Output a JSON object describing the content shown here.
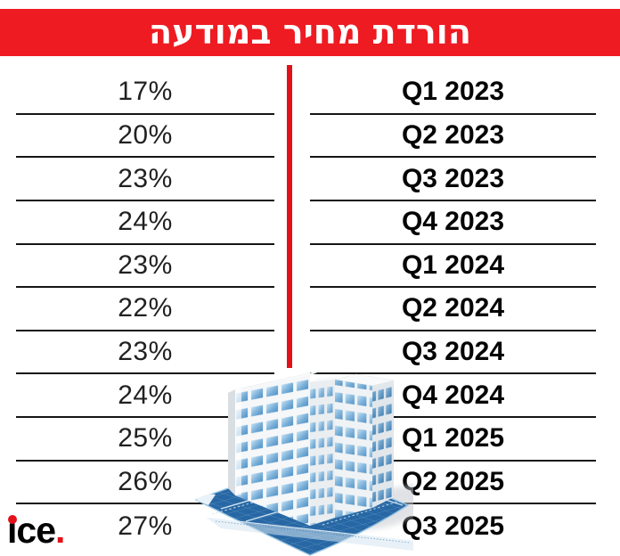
{
  "title": "הורדת מחיר במודעה",
  "logo": {
    "word": "ice",
    "period": "."
  },
  "colors": {
    "banner_red": "#EE1B22",
    "divider_red": "#E21117",
    "logo_accent_red": "#E3111B",
    "separator_line": "#151515",
    "blueprint_blue": "#2767A4",
    "window_blue": "#6FA8D4"
  },
  "table": {
    "rows": [
      {
        "percent": "17%",
        "quarter": "Q1 2023"
      },
      {
        "percent": "20%",
        "quarter": "Q2 2023"
      },
      {
        "percent": "23%",
        "quarter": "Q3 2023"
      },
      {
        "percent": "24%",
        "quarter": "Q4 2023"
      },
      {
        "percent": "23%",
        "quarter": "Q1 2024"
      },
      {
        "percent": "22%",
        "quarter": "Q2 2024"
      },
      {
        "percent": "23%",
        "quarter": "Q3 2024"
      },
      {
        "percent": "24%",
        "quarter": "Q4 2024"
      },
      {
        "percent": "25%",
        "quarter": "Q1 2025"
      },
      {
        "percent": "26%",
        "quarter": "Q2 2025"
      },
      {
        "percent": "27%",
        "quarter": "Q3 2025"
      }
    ]
  },
  "chart_data": {
    "type": "table",
    "title": "הורדת מחיר במודעה",
    "columns": [
      "percent",
      "quarter"
    ],
    "categories": [
      "Q1 2023",
      "Q2 2023",
      "Q3 2023",
      "Q4 2023",
      "Q1 2024",
      "Q2 2024",
      "Q3 2024",
      "Q4 2024",
      "Q1 2025",
      "Q2 2025",
      "Q3 2025"
    ],
    "values": [
      17,
      20,
      23,
      24,
      23,
      22,
      23,
      24,
      25,
      26,
      27
    ],
    "unit": "%",
    "legend_position": "none",
    "grid": "row-separators"
  }
}
